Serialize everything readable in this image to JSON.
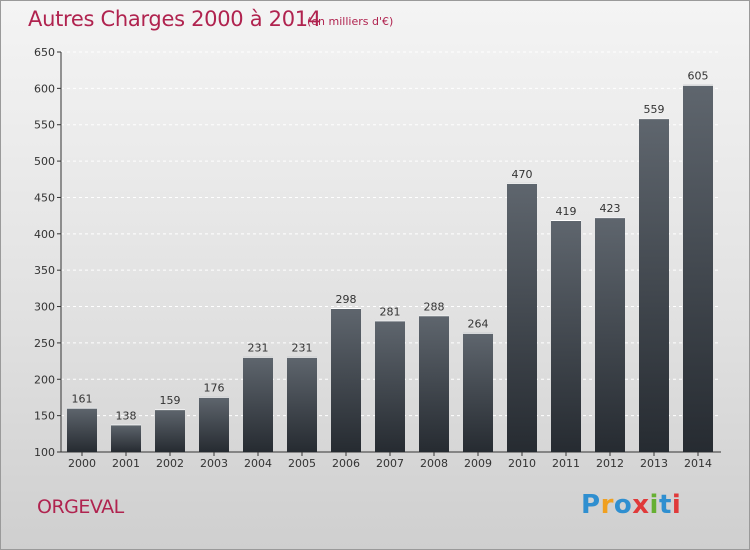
{
  "chart_data": {
    "type": "bar",
    "title": "Autres Charges 2000 à 2014",
    "subtitle": "(en milliers d'€)",
    "categories": [
      "2000",
      "2001",
      "2002",
      "2003",
      "2004",
      "2005",
      "2006",
      "2007",
      "2008",
      "2009",
      "2010",
      "2011",
      "2012",
      "2013",
      "2014"
    ],
    "values": [
      161,
      138,
      159,
      176,
      231,
      231,
      298,
      281,
      288,
      264,
      470,
      419,
      423,
      559,
      605
    ],
    "ylim": [
      100,
      650
    ],
    "yticks": [
      100,
      150,
      200,
      250,
      300,
      350,
      400,
      450,
      500,
      550,
      600,
      650
    ],
    "grid": true
  },
  "location": "ORGEVAL",
  "brand": {
    "letters": [
      "P",
      "r",
      "o",
      "x",
      "i",
      "t",
      "i"
    ],
    "colors": [
      "#2f8fd0",
      "#f0a020",
      "#2f8fd0",
      "#e03a3a",
      "#66b032",
      "#2f8fd0",
      "#e03a3a"
    ]
  }
}
